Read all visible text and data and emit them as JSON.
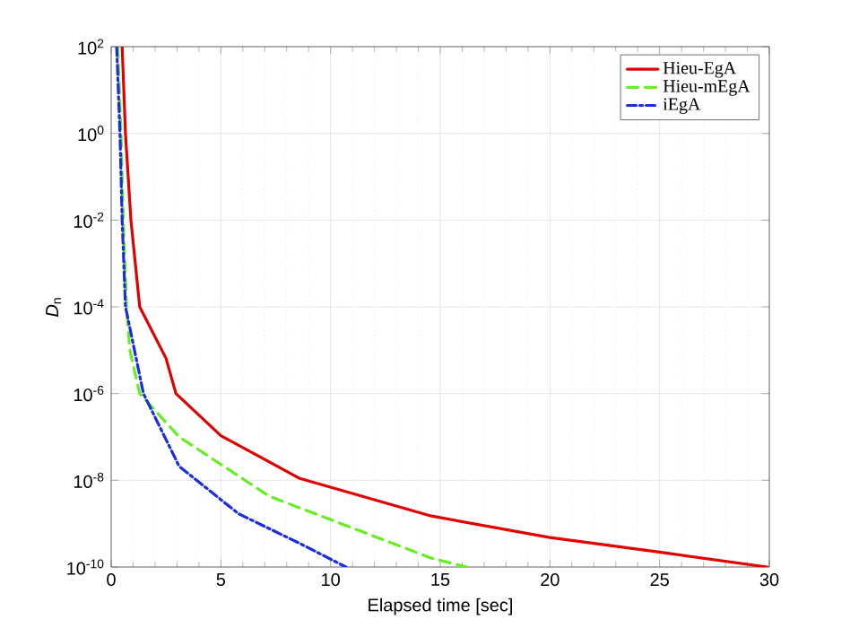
{
  "chart_data": {
    "type": "line",
    "xlabel": "Elapsed time [sec]",
    "ylabel": "*D*$_{n}$",
    "log": "y",
    "xlim": [
      0,
      30
    ],
    "ylim": [
      1e-10,
      100
    ],
    "xticks": [
      0,
      5,
      10,
      15,
      20,
      25,
      30
    ],
    "yticks": [
      {
        "value": 100,
        "label": "10$^{2}$"
      },
      {
        "value": 1,
        "label": "10$^{0}$"
      },
      {
        "value": 0.01,
        "label": "10$^{-2}$"
      },
      {
        "value": 0.0001,
        "label": "10$^{-4}$"
      },
      {
        "value": 1e-06,
        "label": "10$^{-6}$"
      },
      {
        "value": 1e-08,
        "label": "10$^{-8}$"
      },
      {
        "value": 1e-10,
        "label": "10$^{-10}$"
      }
    ],
    "grid": true,
    "legend": "top right",
    "marker": "none",
    "series": [
      {
        "name": "Hieu-EgA",
        "color": "#e00000",
        "line_style": "solid",
        "x": [
          0.5,
          0.65,
          0.9,
          1.3,
          2.5,
          2.95,
          5.0,
          8.6,
          14.6,
          20.0,
          25.0,
          29.9
        ],
        "values": [
          100,
          1,
          0.01,
          0.0001,
          6.5e-06,
          1e-06,
          1.07e-07,
          1.1e-08,
          1.5e-09,
          4.8e-10,
          2.2e-10,
          1e-10
        ]
      },
      {
        "name": "Hieu-mEgA",
        "color": "#66ee22",
        "line_style": "dashed",
        "x": [
          0.3,
          0.45,
          0.55,
          0.7,
          0.85,
          1.3,
          3.1,
          7.2,
          14.6,
          16.2
        ],
        "values": [
          100,
          1,
          0.01,
          0.0001,
          1e-05,
          1e-06,
          1e-07,
          4.3e-09,
          1.6e-10,
          1e-10
        ]
      },
      {
        "name": "iEgA",
        "color": "#1a2ee0",
        "line_style": "dashdot",
        "x": [
          0.25,
          0.4,
          0.5,
          0.65,
          0.8,
          1.47,
          3.1,
          5.8,
          8.6,
          10.7
        ],
        "values": [
          100,
          1,
          0.01,
          0.0001,
          4.4e-05,
          1e-06,
          2.1e-08,
          1.7e-09,
          3.5e-10,
          1e-10
        ]
      }
    ]
  }
}
